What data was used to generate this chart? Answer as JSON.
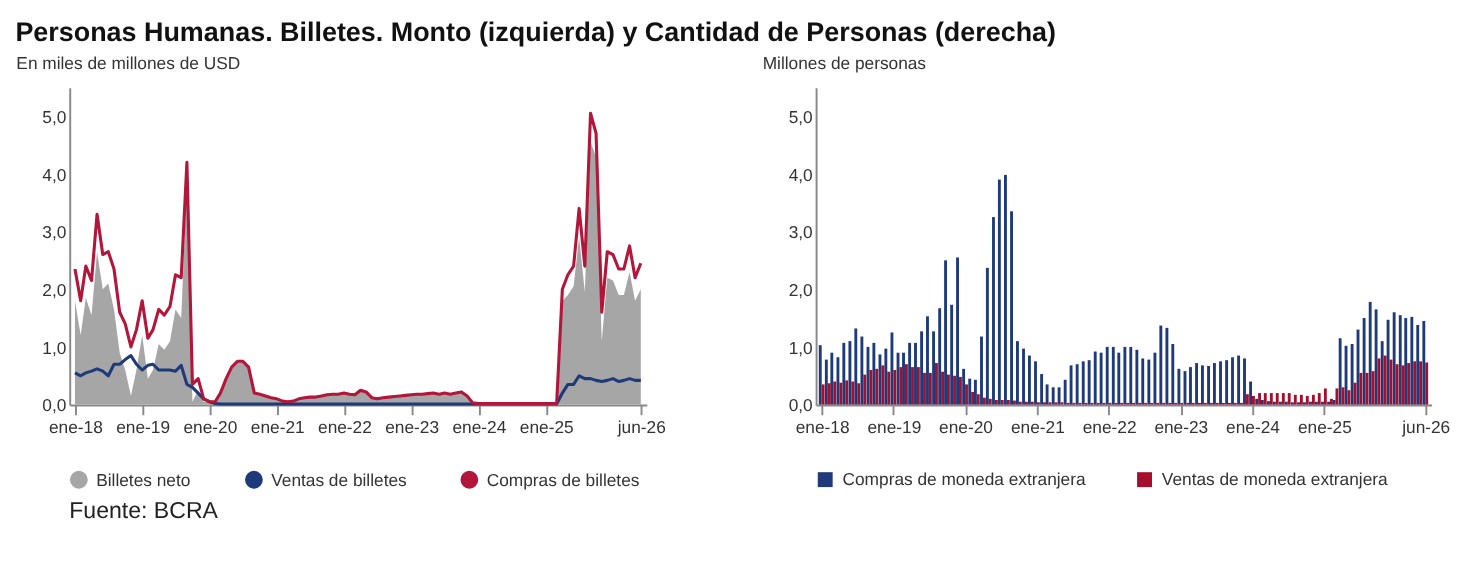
{
  "chart_data": [
    {
      "type": "line",
      "title": "Personas Humanas. Billetes. Monto (izquierda) y Cantidad de Personas (derecha)",
      "ylabel": "En miles de millones de USD",
      "annotations": [
        "Fuente: BCRA"
      ],
      "legend": "bottom",
      "grid": false,
      "xlim": [
        "2017-12",
        "2026-07"
      ],
      "xticks": [
        {
          "value": "2018-01",
          "label": "ene-18"
        },
        {
          "value": "2019-01",
          "label": "ene-19"
        },
        {
          "value": "2020-01",
          "label": "ene-20"
        },
        {
          "value": "2021-01",
          "label": "ene-21"
        },
        {
          "value": "2022-01",
          "label": "ene-22"
        },
        {
          "value": "2023-01",
          "label": "ene-23"
        },
        {
          "value": "2024-01",
          "label": "ene-24"
        },
        {
          "value": "2025-01",
          "label": "ene-25"
        },
        {
          "value": "2026-06",
          "label": "jun-26"
        }
      ],
      "ylim": [
        0,
        5.5
      ],
      "yticks": [
        {
          "value": 0,
          "label": "0,0"
        },
        {
          "value": 1,
          "label": "1,0"
        },
        {
          "value": 2,
          "label": "2,0"
        },
        {
          "value": 3,
          "label": "3,0"
        },
        {
          "value": 4,
          "label": "4,0"
        },
        {
          "value": 5,
          "label": "5,0"
        }
      ],
      "x": [
        "2018-01",
        "2018-02",
        "2018-03",
        "2018-04",
        "2018-05",
        "2018-06",
        "2018-07",
        "2018-08",
        "2018-09",
        "2018-10",
        "2018-11",
        "2018-12",
        "2019-01",
        "2019-02",
        "2019-03",
        "2019-04",
        "2019-05",
        "2019-06",
        "2019-07",
        "2019-08",
        "2019-09",
        "2019-10",
        "2019-11",
        "2019-12",
        "2020-01",
        "2020-02",
        "2020-03",
        "2020-04",
        "2020-05",
        "2020-06",
        "2020-07",
        "2020-08",
        "2020-09",
        "2020-10",
        "2020-11",
        "2020-12",
        "2021-01",
        "2021-02",
        "2021-03",
        "2021-04",
        "2021-05",
        "2021-06",
        "2021-07",
        "2021-08",
        "2021-09",
        "2021-10",
        "2021-11",
        "2021-12",
        "2022-01",
        "2022-02",
        "2022-03",
        "2022-04",
        "2022-05",
        "2022-06",
        "2022-07",
        "2022-08",
        "2022-09",
        "2022-10",
        "2022-11",
        "2022-12",
        "2023-01",
        "2023-02",
        "2023-03",
        "2023-04",
        "2023-05",
        "2023-06",
        "2023-07",
        "2023-08",
        "2023-09",
        "2023-10",
        "2023-11",
        "2023-12",
        "2024-01",
        "2024-02",
        "2024-03",
        "2024-04",
        "2024-05",
        "2024-06",
        "2024-07",
        "2024-08",
        "2024-09",
        "2024-10",
        "2024-11",
        "2024-12",
        "2025-01",
        "2025-02",
        "2025-03",
        "2025-04",
        "2025-05",
        "2025-06",
        "2025-07",
        "2025-08",
        "2025-09",
        "2025-10",
        "2025-11",
        "2025-12",
        "2026-01",
        "2026-02",
        "2026-03",
        "2026-04",
        "2026-05",
        "2026-06"
      ],
      "series": [
        {
          "name": "Billetes neto",
          "type": "area",
          "color": "#a6a6a6",
          "values": [
            1.8,
            1.2,
            1.85,
            1.55,
            2.65,
            2.0,
            2.1,
            1.65,
            0.9,
            0.6,
            0.15,
            0.6,
            1.2,
            0.45,
            0.6,
            1.05,
            0.95,
            1.1,
            1.65,
            1.5,
            3.85,
            0.05,
            0.25,
            0.05,
            0.04,
            0.04,
            0.19,
            0.44,
            0.64,
            0.74,
            0.74,
            0.64,
            0.19,
            0.17,
            0.14,
            0.11,
            0.09,
            0.05,
            0.04,
            0.05,
            0.09,
            0.11,
            0.12,
            0.12,
            0.14,
            0.16,
            0.17,
            0.17,
            0.19,
            0.17,
            0.16,
            0.24,
            0.21,
            0.11,
            0.09,
            0.11,
            0.12,
            0.13,
            0.14,
            0.15,
            0.16,
            0.17,
            0.17,
            0.18,
            0.19,
            0.17,
            0.19,
            0.17,
            0.19,
            0.21,
            0.14,
            0.02,
            0.01,
            0.01,
            0.01,
            0.01,
            0.01,
            0.01,
            0.01,
            0.01,
            0.01,
            0.01,
            0.01,
            0.01,
            0.01,
            0.01,
            0.01,
            1.8,
            1.9,
            2.05,
            2.9,
            1.95,
            4.55,
            4.3,
            1.1,
            2.2,
            2.15,
            1.9,
            1.9,
            2.3,
            1.8,
            2.0
          ]
        },
        {
          "name": "Ventas de billetes",
          "type": "line",
          "color": "#1f3a7a",
          "values": [
            0.55,
            0.5,
            0.55,
            0.58,
            0.62,
            0.58,
            0.5,
            0.7,
            0.7,
            0.78,
            0.85,
            0.7,
            0.6,
            0.68,
            0.7,
            0.6,
            0.6,
            0.6,
            0.58,
            0.68,
            0.35,
            0.3,
            0.2,
            0.1,
            0.05,
            0.02,
            0.01,
            0.01,
            0.01,
            0.01,
            0.01,
            0.01,
            0.01,
            0.01,
            0.01,
            0.01,
            0.01,
            0.01,
            0.01,
            0.01,
            0.01,
            0.01,
            0.01,
            0.01,
            0.01,
            0.01,
            0.01,
            0.01,
            0.01,
            0.01,
            0.01,
            0.01,
            0.01,
            0.01,
            0.01,
            0.01,
            0.01,
            0.01,
            0.01,
            0.01,
            0.01,
            0.01,
            0.01,
            0.01,
            0.01,
            0.01,
            0.01,
            0.01,
            0.01,
            0.01,
            0.01,
            0.01,
            0.01,
            0.01,
            0.01,
            0.01,
            0.01,
            0.01,
            0.01,
            0.01,
            0.01,
            0.01,
            0.01,
            0.01,
            0.01,
            0.01,
            0.01,
            0.2,
            0.35,
            0.35,
            0.5,
            0.45,
            0.45,
            0.42,
            0.4,
            0.42,
            0.45,
            0.4,
            0.42,
            0.45,
            0.42,
            0.42
          ]
        },
        {
          "name": "Compras de billetes",
          "type": "line",
          "color": "#b2163a",
          "values": [
            2.35,
            1.8,
            2.4,
            2.15,
            3.3,
            2.6,
            2.65,
            2.35,
            1.6,
            1.4,
            1.0,
            1.3,
            1.8,
            1.15,
            1.3,
            1.65,
            1.55,
            1.7,
            2.25,
            2.2,
            4.2,
            0.35,
            0.45,
            0.1,
            0.05,
            0.05,
            0.2,
            0.45,
            0.65,
            0.75,
            0.75,
            0.65,
            0.2,
            0.18,
            0.15,
            0.12,
            0.1,
            0.06,
            0.05,
            0.06,
            0.1,
            0.12,
            0.13,
            0.13,
            0.15,
            0.17,
            0.18,
            0.18,
            0.2,
            0.18,
            0.17,
            0.25,
            0.22,
            0.12,
            0.1,
            0.12,
            0.13,
            0.14,
            0.15,
            0.16,
            0.17,
            0.18,
            0.18,
            0.19,
            0.2,
            0.18,
            0.2,
            0.18,
            0.2,
            0.22,
            0.15,
            0.03,
            0.02,
            0.02,
            0.02,
            0.02,
            0.02,
            0.02,
            0.02,
            0.02,
            0.02,
            0.02,
            0.02,
            0.02,
            0.02,
            0.02,
            0.02,
            2.0,
            2.25,
            2.4,
            3.4,
            2.4,
            5.05,
            4.7,
            1.6,
            2.65,
            2.6,
            2.35,
            2.35,
            2.75,
            2.2,
            2.45
          ]
        }
      ]
    },
    {
      "type": "bar",
      "ylabel": "Millones de personas",
      "legend": "bottom",
      "grid": false,
      "xlim": [
        "2017-12",
        "2026-07"
      ],
      "xticks": [
        {
          "value": "2018-01",
          "label": "ene-18"
        },
        {
          "value": "2019-01",
          "label": "ene-19"
        },
        {
          "value": "2020-01",
          "label": "ene-20"
        },
        {
          "value": "2021-01",
          "label": "ene-21"
        },
        {
          "value": "2022-01",
          "label": "ene-22"
        },
        {
          "value": "2023-01",
          "label": "ene-23"
        },
        {
          "value": "2024-01",
          "label": "ene-24"
        },
        {
          "value": "2025-01",
          "label": "ene-25"
        },
        {
          "value": "2026-06",
          "label": "jun-26"
        }
      ],
      "ylim": [
        0,
        5.5
      ],
      "yticks": [
        {
          "value": 0,
          "label": "0,0"
        },
        {
          "value": 1,
          "label": "1,0"
        },
        {
          "value": 2,
          "label": "2,0"
        },
        {
          "value": 3,
          "label": "3,0"
        },
        {
          "value": 4,
          "label": "4,0"
        },
        {
          "value": 5,
          "label": "5,0"
        }
      ],
      "x": [
        "2018-01",
        "2018-02",
        "2018-03",
        "2018-04",
        "2018-05",
        "2018-06",
        "2018-07",
        "2018-08",
        "2018-09",
        "2018-10",
        "2018-11",
        "2018-12",
        "2019-01",
        "2019-02",
        "2019-03",
        "2019-04",
        "2019-05",
        "2019-06",
        "2019-07",
        "2019-08",
        "2019-09",
        "2019-10",
        "2019-11",
        "2019-12",
        "2020-01",
        "2020-02",
        "2020-03",
        "2020-04",
        "2020-05",
        "2020-06",
        "2020-07",
        "2020-08",
        "2020-09",
        "2020-10",
        "2020-11",
        "2020-12",
        "2021-01",
        "2021-02",
        "2021-03",
        "2021-04",
        "2021-05",
        "2021-06",
        "2021-07",
        "2021-08",
        "2021-09",
        "2021-10",
        "2021-11",
        "2021-12",
        "2022-01",
        "2022-02",
        "2022-03",
        "2022-04",
        "2022-05",
        "2022-06",
        "2022-07",
        "2022-08",
        "2022-09",
        "2022-10",
        "2022-11",
        "2022-12",
        "2023-01",
        "2023-02",
        "2023-03",
        "2023-04",
        "2023-05",
        "2023-06",
        "2023-07",
        "2023-08",
        "2023-09",
        "2023-10",
        "2023-11",
        "2023-12",
        "2024-01",
        "2024-02",
        "2024-03",
        "2024-04",
        "2024-05",
        "2024-06",
        "2024-07",
        "2024-08",
        "2024-09",
        "2024-10",
        "2024-11",
        "2024-12",
        "2025-01",
        "2025-02",
        "2025-03",
        "2025-04",
        "2025-05",
        "2025-06",
        "2025-07",
        "2025-08",
        "2025-09",
        "2025-10",
        "2025-11",
        "2025-12",
        "2026-01",
        "2026-02",
        "2026-03",
        "2026-04",
        "2026-05",
        "2026-06"
      ],
      "series": [
        {
          "name": "Compras de moneda extranjera",
          "color": "#1f3a7a",
          "values": [
            1.03,
            0.78,
            0.9,
            0.82,
            1.07,
            1.1,
            1.32,
            1.18,
            1.0,
            1.07,
            0.87,
            0.97,
            1.25,
            0.9,
            0.9,
            1.07,
            1.07,
            1.27,
            1.53,
            1.27,
            1.67,
            2.5,
            1.73,
            2.55,
            0.62,
            0.45,
            0.43,
            1.18,
            2.37,
            3.25,
            3.9,
            3.98,
            3.35,
            1.1,
            0.97,
            0.85,
            0.75,
            0.53,
            0.35,
            0.3,
            0.3,
            0.43,
            0.68,
            0.7,
            0.75,
            0.77,
            0.92,
            0.9,
            1.0,
            1.0,
            0.9,
            1.0,
            1.0,
            0.95,
            0.8,
            0.78,
            0.9,
            1.37,
            1.33,
            1.05,
            0.62,
            0.58,
            0.65,
            0.72,
            0.68,
            0.67,
            0.72,
            0.75,
            0.77,
            0.82,
            0.85,
            0.8,
            0.4,
            0.1,
            0.08,
            0.06,
            0.05,
            0.05,
            0.05,
            0.04,
            0.04,
            0.04,
            0.05,
            0.05,
            0.05,
            0.05,
            0.08,
            1.15,
            1.02,
            1.05,
            1.3,
            1.5,
            1.78,
            1.65,
            1.1,
            1.47,
            1.6,
            1.55,
            1.5,
            1.52,
            1.38,
            1.45
          ]
        },
        {
          "name": "Ventas de moneda extranjera",
          "color": "#a50f2d",
          "values": [
            0.35,
            0.37,
            0.4,
            0.38,
            0.42,
            0.4,
            0.37,
            0.52,
            0.6,
            0.62,
            0.68,
            0.57,
            0.6,
            0.65,
            0.7,
            0.65,
            0.65,
            0.55,
            0.55,
            0.72,
            0.57,
            0.52,
            0.5,
            0.48,
            0.35,
            0.22,
            0.18,
            0.12,
            0.1,
            0.08,
            0.08,
            0.08,
            0.07,
            0.05,
            0.05,
            0.05,
            0.04,
            0.04,
            0.04,
            0.04,
            0.04,
            0.03,
            0.03,
            0.03,
            0.03,
            0.03,
            0.03,
            0.03,
            0.03,
            0.03,
            0.03,
            0.03,
            0.03,
            0.03,
            0.03,
            0.03,
            0.03,
            0.03,
            0.03,
            0.03,
            0.03,
            0.03,
            0.03,
            0.03,
            0.03,
            0.03,
            0.03,
            0.03,
            0.03,
            0.03,
            0.03,
            0.18,
            0.15,
            0.2,
            0.2,
            0.2,
            0.2,
            0.2,
            0.2,
            0.17,
            0.17,
            0.15,
            0.17,
            0.2,
            0.28,
            0.1,
            0.28,
            0.3,
            0.25,
            0.38,
            0.55,
            0.55,
            0.58,
            0.8,
            0.85,
            0.78,
            0.7,
            0.68,
            0.72,
            0.75,
            0.75,
            0.73
          ]
        }
      ]
    }
  ]
}
